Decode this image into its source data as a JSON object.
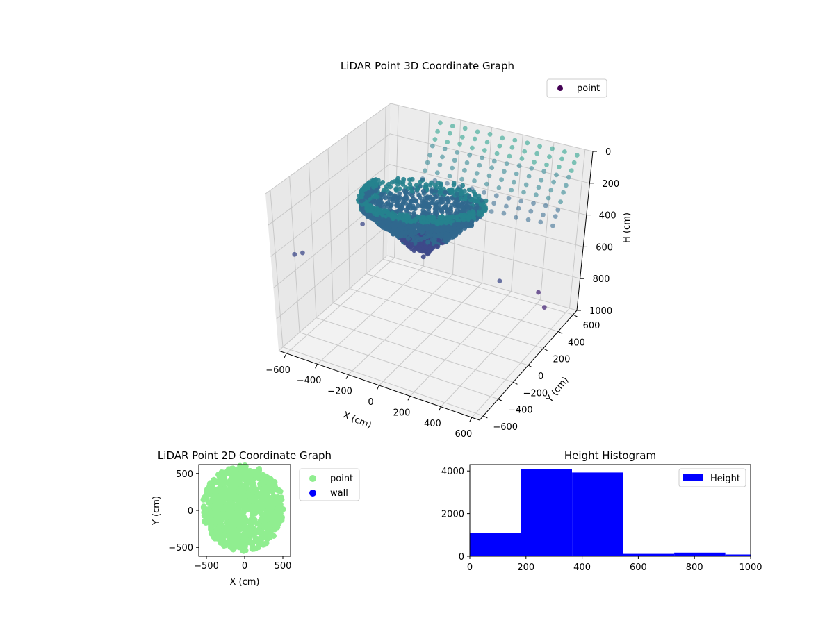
{
  "chart_data": [
    {
      "type": "scatter",
      "projection": "3d",
      "title": "LiDAR Point 3D Coordinate Graph",
      "xlabel": "X (cm)",
      "ylabel": "Y (cm)",
      "zlabel": "H (cm)",
      "xticks": [
        "−600",
        "−400",
        "−200",
        "0",
        "200",
        "400",
        "600"
      ],
      "yticks": [
        "−600",
        "−400",
        "−200",
        "0",
        "200",
        "400",
        "600"
      ],
      "zticks": [
        "0",
        "200",
        "400",
        "600",
        "800",
        "1000"
      ],
      "xlim": [
        -650,
        650
      ],
      "ylim": [
        -650,
        650
      ],
      "zlim": [
        0,
        1000
      ],
      "zaxis_inverted": true,
      "grid": true,
      "colormap": "viridis",
      "legend": {
        "placement": "top-right",
        "entries": [
          {
            "name": "point",
            "color": "#440154"
          }
        ]
      },
      "series": [
        {
          "name": "point",
          "description_of_shape": "dense bowl-shaped cluster centered near x=-100, y=0 at heights 200-600, plus a sparse curtain of vertical point columns at y around 600",
          "cluster_points": [
            {
              "x": -200,
              "y": -100,
              "h": 350
            },
            {
              "x": -100,
              "y": 0,
              "h": 400
            },
            {
              "x": 0,
              "y": 100,
              "h": 450
            },
            {
              "x": 100,
              "y": -50,
              "h": 420
            }
          ]
        }
      ]
    },
    {
      "type": "scatter",
      "title": "LiDAR Point 2D Coordinate Graph",
      "xlabel": "X (cm)",
      "ylabel": "Y (cm)",
      "xticks": [
        "−500",
        "0",
        "500"
      ],
      "yticks": [
        "−500",
        "0",
        "500"
      ],
      "xlim": [
        -600,
        600
      ],
      "ylim": [
        -620,
        620
      ],
      "legend": {
        "placement": "outside-right",
        "entries": [
          {
            "name": "point",
            "color": "#90ee90"
          },
          {
            "name": "wall",
            "color": "#0000ff"
          }
        ]
      },
      "series": [
        {
          "name": "point",
          "color": "#90ee90",
          "region": "filled disc spanning x -550 to 500, y -550 to 600"
        },
        {
          "name": "wall",
          "color": "#0000ff",
          "values": []
        }
      ]
    },
    {
      "type": "bar",
      "histogram": true,
      "title": "Height Histogram",
      "xlabel": "",
      "ylabel": "",
      "xticks": [
        "0",
        "200",
        "400",
        "600",
        "800",
        "1000"
      ],
      "yticks": [
        "0",
        "2000",
        "4000"
      ],
      "xlim": [
        0,
        1000
      ],
      "ylim": [
        0,
        4300
      ],
      "legend": {
        "placement": "top-right",
        "entries": [
          {
            "name": "Height",
            "color": "#0000ff"
          }
        ]
      },
      "bins": [
        {
          "start": 0,
          "end": 182,
          "count": 1100
        },
        {
          "start": 182,
          "end": 364,
          "count": 4080
        },
        {
          "start": 364,
          "end": 546,
          "count": 3930
        },
        {
          "start": 546,
          "end": 728,
          "count": 110
        },
        {
          "start": 728,
          "end": 910,
          "count": 170
        },
        {
          "start": 910,
          "end": 1000,
          "count": 80
        }
      ],
      "series": [
        {
          "name": "Height",
          "color": "#0000ff"
        }
      ]
    }
  ]
}
